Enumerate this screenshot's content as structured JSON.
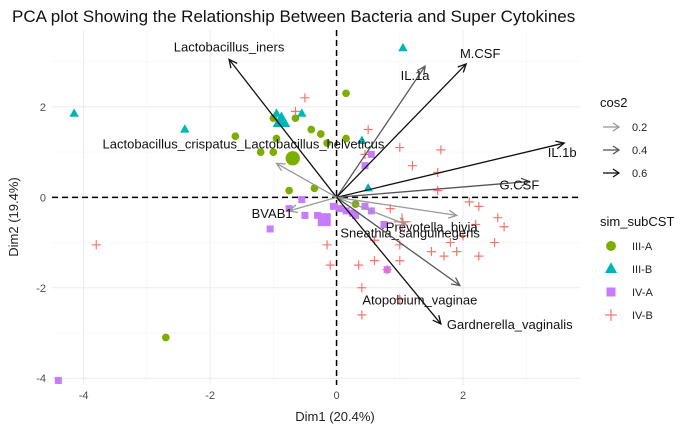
{
  "chart_data": {
    "type": "scatter",
    "subtype": "pca-biplot",
    "title": "PCA plot Showing the Relationship Between Bacteria and Super Cytokines",
    "xlabel": "Dim1 (20.4%)",
    "ylabel": "Dim2 (19.4%)",
    "xlim": [
      -4.5,
      3.85
    ],
    "ylim": [
      -4.15,
      3.7
    ],
    "xticks": [
      -4,
      -2,
      0,
      2
    ],
    "yticks": [
      -4,
      -2,
      0,
      2
    ],
    "grid": true,
    "reference_lines": {
      "x": 0,
      "y": 0,
      "style": "dashed"
    },
    "vectors": [
      {
        "name": "Lactobacillus_iners",
        "x": -1.7,
        "y": 3.05,
        "cos2": 0.6
      },
      {
        "name": "IL.1a",
        "x": 1.4,
        "y": 2.9,
        "cos2": 0.4
      },
      {
        "name": "M.CSF",
        "x": 2.05,
        "y": 2.95,
        "cos2": 0.6
      },
      {
        "name": "IL.1b",
        "x": 3.6,
        "y": 1.2,
        "cos2": 0.6
      },
      {
        "name": "G.CSF",
        "x": 3.05,
        "y": 0.35,
        "cos2": 0.4
      },
      {
        "name": "Prevotella_bivia",
        "x": 1.9,
        "y": -0.4,
        "cos2": 0.3
      },
      {
        "name": "Lactobacillus_crispatus_Lactobacillus_helveticus",
        "x": -0.95,
        "y": 0.75,
        "cos2": 0.2
      },
      {
        "name": "BVAB1",
        "x": -0.75,
        "y": -0.3,
        "cos2": 0.2
      },
      {
        "name": "Sneathia_sanguinegens",
        "x": 1.1,
        "y": -0.6,
        "cos2": 0.2
      },
      {
        "name": "Atopobium_vaginae",
        "x": 1.95,
        "y": -1.95,
        "cos2": 0.4
      },
      {
        "name": "Gardnerella_vaginalis",
        "x": 1.65,
        "y": -2.8,
        "cos2": 0.6
      }
    ],
    "series": [
      {
        "name": "III-A",
        "shape": "circle",
        "color": "#7cae00",
        "points": [
          [
            -1.0,
            1.75
          ],
          [
            -1.0,
            1.0
          ],
          [
            -0.95,
            1.3
          ],
          [
            -1.2,
            1.0
          ],
          [
            -1.6,
            1.35
          ],
          [
            -0.65,
            1.75
          ],
          [
            -0.4,
            1.5
          ],
          [
            -0.25,
            1.4
          ],
          [
            -0.15,
            1.2
          ],
          [
            0.15,
            1.3
          ],
          [
            0.15,
            2.3
          ],
          [
            -2.7,
            -3.1
          ],
          [
            0.3,
            -0.15
          ],
          [
            -0.35,
            0.2
          ],
          [
            -0.75,
            0.15
          ]
        ]
      },
      {
        "name": "III-B",
        "shape": "triangle",
        "color": "#00b5b8",
        "points": [
          [
            -4.15,
            1.85
          ],
          [
            -2.4,
            1.5
          ],
          [
            -0.95,
            1.85
          ],
          [
            -0.55,
            1.85
          ],
          [
            0.4,
            1.25
          ],
          [
            1.05,
            3.3
          ],
          [
            0.5,
            0.2
          ]
        ]
      },
      {
        "name": "IV-A",
        "shape": "square",
        "color": "#c77cff",
        "points": [
          [
            -4.4,
            -4.05
          ],
          [
            -1.05,
            -0.7
          ],
          [
            -0.75,
            -0.25
          ],
          [
            -0.5,
            -0.4
          ],
          [
            -0.3,
            -0.4
          ],
          [
            -0.05,
            -0.2
          ],
          [
            0.15,
            -0.3
          ],
          [
            0.25,
            -0.35
          ],
          [
            0.3,
            -0.4
          ],
          [
            0.45,
            -0.2
          ],
          [
            0.55,
            -0.3
          ],
          [
            0.75,
            -0.6
          ],
          [
            0.8,
            -1.6
          ],
          [
            0.45,
            0.7
          ],
          [
            0.55,
            0.95
          ],
          [
            0.05,
            -0.25
          ],
          [
            -0.55,
            -0.05
          ]
        ]
      },
      {
        "name": "IV-B",
        "shape": "plus",
        "color": "#f8766d",
        "points": [
          [
            -3.8,
            -1.05
          ],
          [
            -0.5,
            2.2
          ],
          [
            -0.65,
            1.9
          ],
          [
            0.45,
            0.95
          ],
          [
            0.5,
            1.5
          ],
          [
            1.0,
            1.1
          ],
          [
            1.2,
            0.7
          ],
          [
            1.6,
            0.55
          ],
          [
            1.6,
            0.15
          ],
          [
            1.65,
            1.05
          ],
          [
            2.2,
            -0.6
          ],
          [
            2.25,
            -0.2
          ],
          [
            2.1,
            -0.1
          ],
          [
            2.55,
            -0.45
          ],
          [
            2.65,
            -0.65
          ],
          [
            2.5,
            -1.0
          ],
          [
            2.25,
            -1.3
          ],
          [
            1.9,
            -1.2
          ],
          [
            1.7,
            -1.3
          ],
          [
            1.5,
            -1.2
          ],
          [
            1.0,
            -1.4
          ],
          [
            0.8,
            -1.6
          ],
          [
            0.6,
            -1.4
          ],
          [
            0.35,
            -1.5
          ],
          [
            0.4,
            -2.0
          ],
          [
            0.4,
            -2.6
          ],
          [
            1.05,
            -0.55
          ],
          [
            0.85,
            -0.25
          ],
          [
            1.0,
            -1.05
          ],
          [
            0.6,
            -0.95
          ],
          [
            -0.15,
            -1.05
          ],
          [
            -0.1,
            -1.5
          ],
          [
            1.0,
            -2.25
          ],
          [
            1.8,
            -1.0
          ],
          [
            2.0,
            -0.85
          ]
        ]
      }
    ],
    "legends": [
      {
        "title": "cos2",
        "type": "arrow",
        "entries": [
          {
            "label": "0.2",
            "value": 0.2
          },
          {
            "label": "0.4",
            "value": 0.4
          },
          {
            "label": "0.6",
            "value": 0.6
          }
        ]
      },
      {
        "title": "sim_subCST",
        "type": "shape",
        "entries": [
          {
            "label": "III-A",
            "shape": "circle",
            "color": "#7cae00"
          },
          {
            "label": "III-B",
            "shape": "triangle",
            "color": "#00b5b8"
          },
          {
            "label": "IV-A",
            "shape": "square",
            "color": "#c77cff"
          },
          {
            "label": "IV-B",
            "shape": "plus",
            "color": "#f8766d"
          }
        ]
      }
    ]
  }
}
